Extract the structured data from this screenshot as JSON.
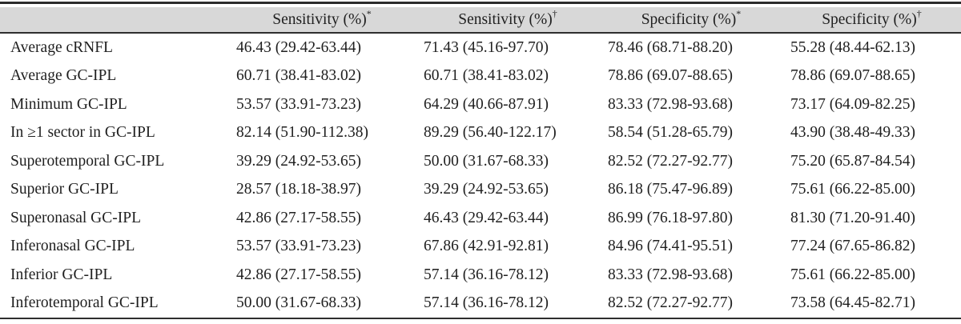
{
  "colors": {
    "header_bg": "#d8d8d8",
    "rule": "#2e2e2e",
    "text": "#1f1f1f"
  },
  "table": {
    "header": {
      "row_label_header": "",
      "columns": [
        {
          "label": "Sensitivity (%)",
          "marker": "*"
        },
        {
          "label": "Sensitivity (%)",
          "marker": "†"
        },
        {
          "label": "Specificity (%)",
          "marker": "*"
        },
        {
          "label": "Specificity (%)",
          "marker": "†"
        }
      ]
    },
    "rows": [
      {
        "label": "Average cRNFL",
        "values": [
          "46.43 (29.42-63.44)",
          "71.43 (45.16-97.70)",
          "78.46 (68.71-88.20)",
          "55.28 (48.44-62.13)"
        ]
      },
      {
        "label": "Average GC-IPL",
        "values": [
          "60.71 (38.41-83.02)",
          "60.71 (38.41-83.02)",
          "78.86 (69.07-88.65)",
          "78.86 (69.07-88.65)"
        ]
      },
      {
        "label": "Minimum GC-IPL",
        "values": [
          "53.57 (33.91-73.23)",
          "64.29 (40.66-87.91)",
          "83.33 (72.98-93.68)",
          "73.17 (64.09-82.25)"
        ]
      },
      {
        "label": "In ≥1 sector in GC-IPL",
        "values": [
          "82.14 (51.90-112.38)",
          "89.29 (56.40-122.17)",
          "58.54 (51.28-65.79)",
          "43.90 (38.48-49.33)"
        ]
      },
      {
        "label": "Superotemporal GC-IPL",
        "values": [
          "39.29 (24.92-53.65)",
          "50.00 (31.67-68.33)",
          "82.52 (72.27-92.77)",
          "75.20 (65.87-84.54)"
        ]
      },
      {
        "label": "Superior GC-IPL",
        "values": [
          "28.57 (18.18-38.97)",
          "39.29 (24.92-53.65)",
          "86.18 (75.47-96.89)",
          "75.61 (66.22-85.00)"
        ]
      },
      {
        "label": "Superonasal GC-IPL",
        "values": [
          "42.86 (27.17-58.55)",
          "46.43 (29.42-63.44)",
          "86.99 (76.18-97.80)",
          "81.30 (71.20-91.40)"
        ]
      },
      {
        "label": "Inferonasal GC-IPL",
        "values": [
          "53.57 (33.91-73.23)",
          "67.86 (42.91-92.81)",
          "84.96 (74.41-95.51)",
          "77.24 (67.65-86.82)"
        ]
      },
      {
        "label": "Inferior GC-IPL",
        "values": [
          "42.86 (27.17-58.55)",
          "57.14 (36.16-78.12)",
          "83.33 (72.98-93.68)",
          "75.61 (66.22-85.00)"
        ]
      },
      {
        "label": "Inferotemporal GC-IPL",
        "values": [
          "50.00 (31.67-68.33)",
          "57.14 (36.16-78.12)",
          "82.52 (72.27-92.77)",
          "73.58 (64.45-82.71)"
        ]
      }
    ]
  }
}
